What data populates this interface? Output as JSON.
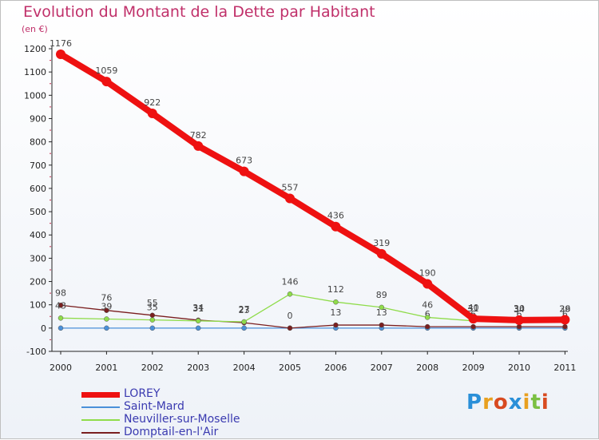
{
  "title": "Evolution du Montant de la Dette par Habitant",
  "unit": "(en €)",
  "logo": "Proxiti",
  "chart_data": {
    "type": "line",
    "title": "Evolution du Montant de la Dette par Habitant",
    "ylabel": "(en €)",
    "xlabel": "",
    "ylim": [
      -100,
      1200
    ],
    "yticks": [
      -100,
      0,
      100,
      200,
      300,
      400,
      500,
      600,
      700,
      800,
      900,
      1000,
      1100,
      1200
    ],
    "grid": false,
    "legend_position": "bottom-left",
    "categories": [
      "2000",
      "2001",
      "2002",
      "2003",
      "2004",
      "2005",
      "2006",
      "2007",
      "2008",
      "2009",
      "2010",
      "2011"
    ],
    "series": [
      {
        "name": "LOREY",
        "color": "#ee1111",
        "values": [
          1176,
          1059,
          922,
          782,
          673,
          557,
          436,
          319,
          190,
          40,
          34,
          36
        ]
      },
      {
        "name": "Saint-Mard",
        "color": "#4a90d9",
        "values": [
          0,
          0,
          0,
          0,
          0,
          0,
          0,
          0,
          0,
          0,
          0,
          0
        ]
      },
      {
        "name": "Neuviller-sur-Moselle",
        "color": "#8fdc4a",
        "values": [
          43,
          39,
          35,
          31,
          27,
          146,
          112,
          89,
          46,
          31,
          30,
          29
        ]
      },
      {
        "name": "Domptail-en-l'Air",
        "color": "#7a1f1f",
        "values": [
          98,
          76,
          55,
          34,
          23,
          0,
          13,
          13,
          6,
          6,
          6,
          6
        ]
      }
    ]
  }
}
